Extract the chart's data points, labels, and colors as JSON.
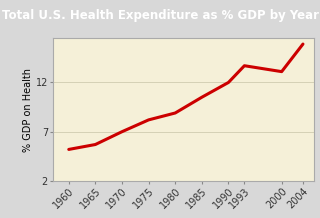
{
  "title": "Total U.S. Health Expenditure as % GDP by Year",
  "ylabel": "% GDP on Health",
  "years": [
    1960,
    1965,
    1970,
    1975,
    1980,
    1985,
    1990,
    1993,
    2000,
    2004
  ],
  "values": [
    5.2,
    5.7,
    7.0,
    8.2,
    8.9,
    10.5,
    12.0,
    13.7,
    13.1,
    15.9
  ],
  "line_color": "#cc0000",
  "plot_bg_color": "#f5f0d8",
  "title_bg_color": "#8b7355",
  "title_text_color": "#ffffff",
  "fig_bg_color": "#d8d8d8",
  "yticks": [
    2,
    7,
    12
  ],
  "xtick_labels": [
    "1960",
    "1965",
    "1970",
    "1975",
    "1980",
    "1985",
    "1990",
    "1993",
    "2000",
    "2004"
  ],
  "ylim": [
    2,
    16.5
  ],
  "xlim": [
    1957,
    2006
  ],
  "title_fontsize": 8.5,
  "ylabel_fontsize": 7,
  "tick_fontsize": 7
}
